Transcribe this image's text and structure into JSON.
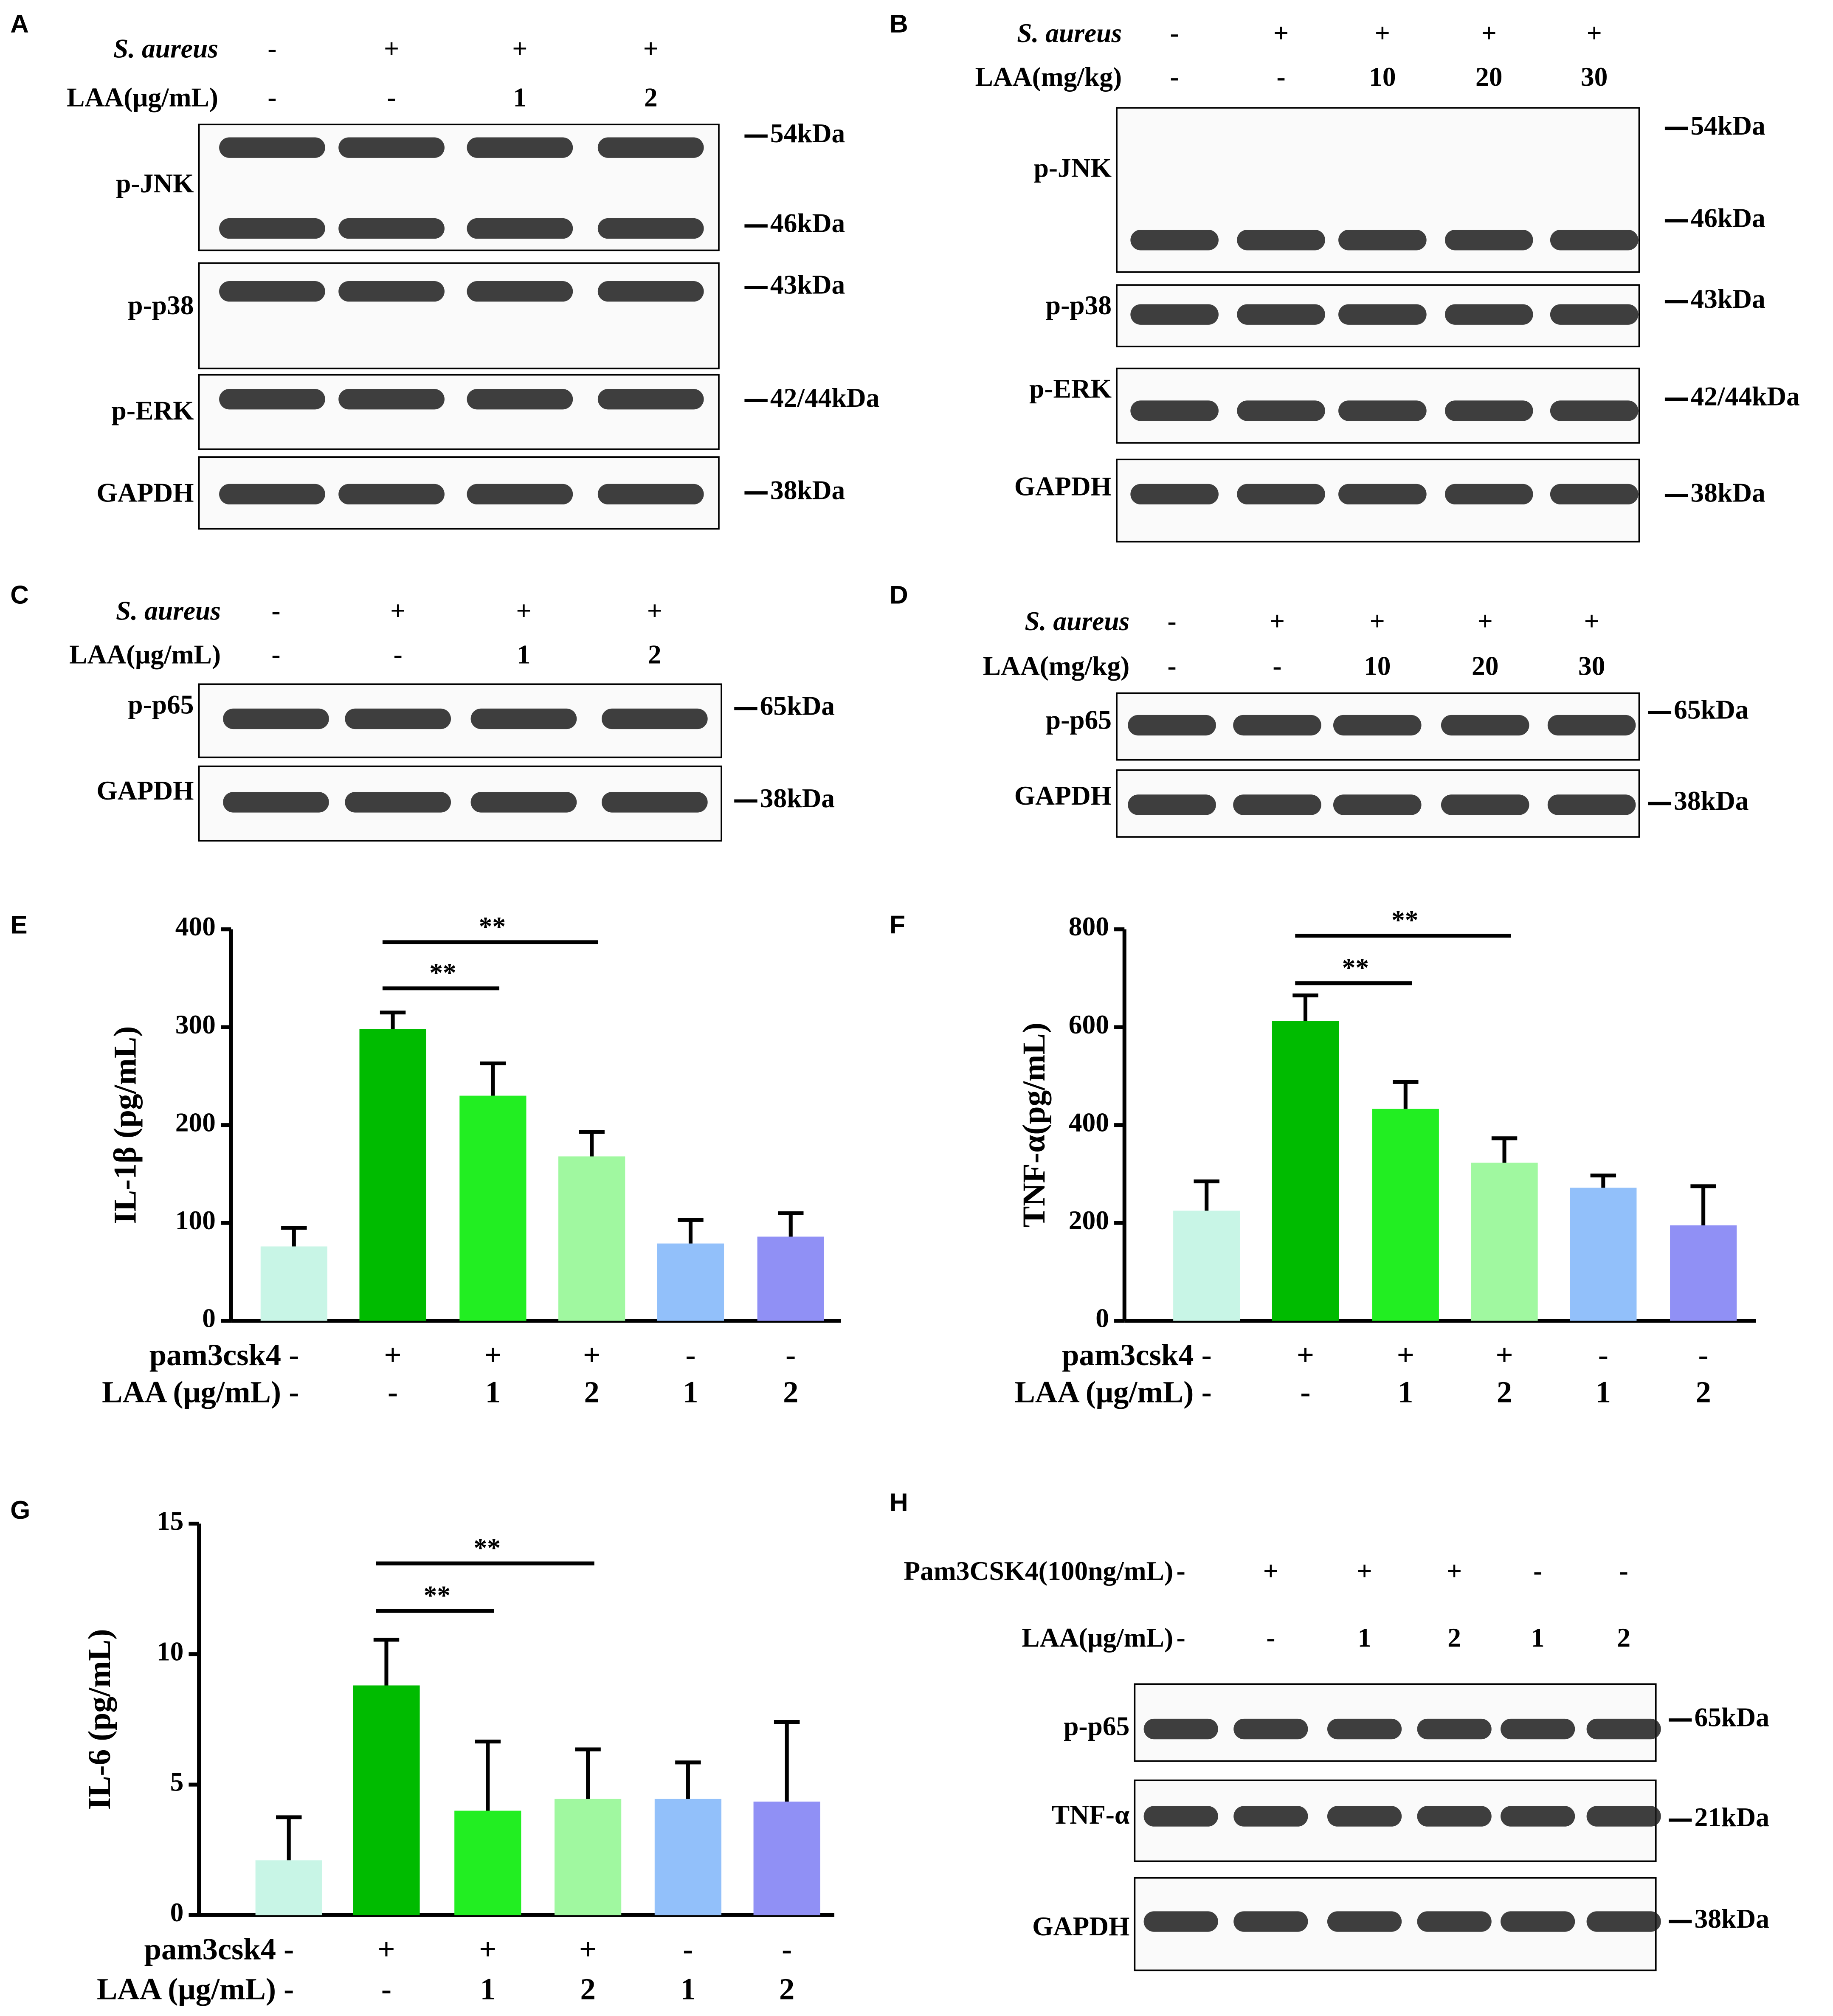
{
  "blots": [
    {
      "panel": "A",
      "conditions": [
        {
          "name": "S. aureus",
          "values": [
            "-",
            "+",
            "+",
            "+"
          ]
        },
        {
          "name": "LAA(μg/mL)",
          "values": [
            "-",
            "-",
            "1",
            "2"
          ]
        }
      ],
      "rows": [
        {
          "name": "p-JNK",
          "markers": [
            "54kDa",
            "46kDa"
          ]
        },
        {
          "name": "p-p38",
          "markers": [
            "43kDa"
          ]
        },
        {
          "name": "p-ERK",
          "markers": [
            "42/44kDa"
          ]
        },
        {
          "name": "GAPDH",
          "markers": [
            "38kDa"
          ]
        }
      ]
    },
    {
      "panel": "B",
      "conditions": [
        {
          "name": "S. aureus",
          "values": [
            "-",
            "+",
            "+",
            "+",
            "+"
          ]
        },
        {
          "name": "LAA(mg/kg)",
          "values": [
            "-",
            "-",
            "10",
            "20",
            "30"
          ]
        }
      ],
      "rows": [
        {
          "name": "p-JNK",
          "markers": [
            "54kDa",
            "46kDa"
          ]
        },
        {
          "name": "p-p38",
          "markers": [
            "43kDa"
          ]
        },
        {
          "name": "p-ERK",
          "markers": [
            "42/44kDa"
          ]
        },
        {
          "name": "GAPDH",
          "markers": [
            "38kDa"
          ]
        }
      ]
    },
    {
      "panel": "C",
      "conditions": [
        {
          "name": "S. aureus",
          "values": [
            "-",
            "+",
            "+",
            "+"
          ]
        },
        {
          "name": "LAA(μg/mL)",
          "values": [
            "-",
            "-",
            "1",
            "2"
          ]
        }
      ],
      "rows": [
        {
          "name": "p-p65",
          "markers": [
            "65kDa"
          ]
        },
        {
          "name": "GAPDH",
          "markers": [
            "38kDa"
          ]
        }
      ]
    },
    {
      "panel": "D",
      "conditions": [
        {
          "name": "S. aureus",
          "values": [
            "-",
            "+",
            "+",
            "+",
            "+"
          ]
        },
        {
          "name": "LAA(mg/kg)",
          "values": [
            "-",
            "-",
            "10",
            "20",
            "30"
          ]
        }
      ],
      "rows": [
        {
          "name": "p-p65",
          "markers": [
            "65kDa"
          ]
        },
        {
          "name": "GAPDH",
          "markers": [
            "38kDa"
          ]
        }
      ]
    },
    {
      "panel": "H",
      "conditions": [
        {
          "name": "Pam3CSK4(100ng/mL)",
          "values": [
            "-",
            "+",
            "+",
            "+",
            "-",
            "-"
          ]
        },
        {
          "name": "LAA(μg/mL)",
          "values": [
            "-",
            "-",
            "1",
            "2",
            "1",
            "2"
          ]
        }
      ],
      "rows": [
        {
          "name": "p-p65",
          "markers": [
            "65kDa"
          ]
        },
        {
          "name": "TNF-α",
          "markers": [
            "21kDa"
          ]
        },
        {
          "name": "GAPDH",
          "markers": [
            "38kDa"
          ]
        }
      ]
    }
  ],
  "chart_data": [
    {
      "type": "bar",
      "panel": "E",
      "y_label": "IL-1β (pg/mL)",
      "ylim": [
        0,
        400
      ],
      "yticks": [
        0,
        100,
        200,
        300,
        400
      ],
      "values": [
        76,
        298,
        230,
        168,
        79,
        86
      ],
      "errors": [
        19,
        17,
        33,
        25,
        24,
        24
      ],
      "colors": [
        "#c8f5e6",
        "#00bb00",
        "#22ee22",
        "#a0f8a0",
        "#92c0fa",
        "#9090f5"
      ],
      "conditions": [
        {
          "name": "pam3csk4",
          "values": [
            "-",
            "+",
            "+",
            "+",
            "-",
            "-"
          ]
        },
        {
          "name": "LAA (μg/mL)",
          "values": [
            "-",
            "-",
            "1",
            "2",
            "1",
            "2"
          ]
        }
      ],
      "significance": [
        {
          "from": 1,
          "to": 2,
          "label": "**"
        },
        {
          "from": 1,
          "to": 3,
          "label": "**"
        }
      ]
    },
    {
      "type": "bar",
      "panel": "F",
      "y_label": "TNF-α(pg/mL)",
      "ylim": [
        0,
        800
      ],
      "yticks": [
        0,
        200,
        400,
        600,
        800
      ],
      "values": [
        225,
        613,
        433,
        323,
        272,
        195
      ],
      "errors": [
        60,
        52,
        55,
        50,
        25,
        80
      ],
      "colors": [
        "#c8f5e6",
        "#00bb00",
        "#22ee22",
        "#a0f8a0",
        "#92c0fa",
        "#9090f5"
      ],
      "conditions": [
        {
          "name": "pam3csk4",
          "values": [
            "-",
            "+",
            "+",
            "+",
            "-",
            "-"
          ]
        },
        {
          "name": "LAA (μg/mL)",
          "values": [
            "-",
            "-",
            "1",
            "2",
            "1",
            "2"
          ]
        }
      ],
      "significance": [
        {
          "from": 1,
          "to": 2,
          "label": "**"
        },
        {
          "from": 1,
          "to": 3,
          "label": "**"
        }
      ]
    },
    {
      "type": "bar",
      "panel": "G",
      "y_label": "IL-6 (pg/mL)",
      "ylim": [
        0,
        15
      ],
      "yticks": [
        0,
        5,
        10,
        15
      ],
      "values": [
        2.1,
        8.8,
        4.0,
        4.45,
        4.45,
        4.35
      ],
      "errors": [
        1.65,
        1.75,
        2.65,
        1.9,
        1.4,
        3.05
      ],
      "colors": [
        "#c8f5e6",
        "#00bb00",
        "#22ee22",
        "#a0f8a0",
        "#92c0fa",
        "#9090f5"
      ],
      "conditions": [
        {
          "name": "pam3csk4",
          "values": [
            "-",
            "+",
            "+",
            "+",
            "-",
            "-"
          ]
        },
        {
          "name": "LAA (μg/mL)",
          "values": [
            "-",
            "-",
            "1",
            "2",
            "1",
            "2"
          ]
        }
      ],
      "significance": [
        {
          "from": 1,
          "to": 2,
          "label": "**"
        },
        {
          "from": 1,
          "to": 3,
          "label": "**"
        }
      ]
    }
  ]
}
